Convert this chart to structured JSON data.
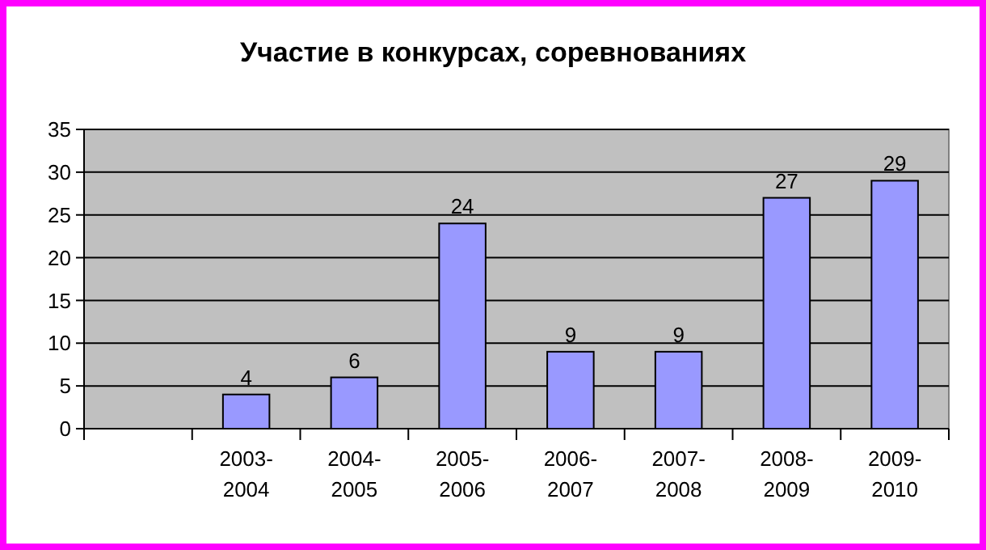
{
  "chart_data": {
    "type": "bar",
    "title": "Участие в конкурсах, соревнованиях",
    "categories": [
      null,
      "2003-2004",
      "2004-2005",
      "2005-2006",
      "2006-2007",
      "2007-2008",
      "2008-2009",
      "2009-2010"
    ],
    "values": [
      null,
      4,
      6,
      24,
      9,
      9,
      27,
      29
    ],
    "color": "#9999ff",
    "ylim": [
      0,
      35
    ],
    "yticks": [
      0,
      5,
      10,
      15,
      20,
      25,
      30,
      35
    ],
    "grid": "y",
    "data_labels": true
  }
}
